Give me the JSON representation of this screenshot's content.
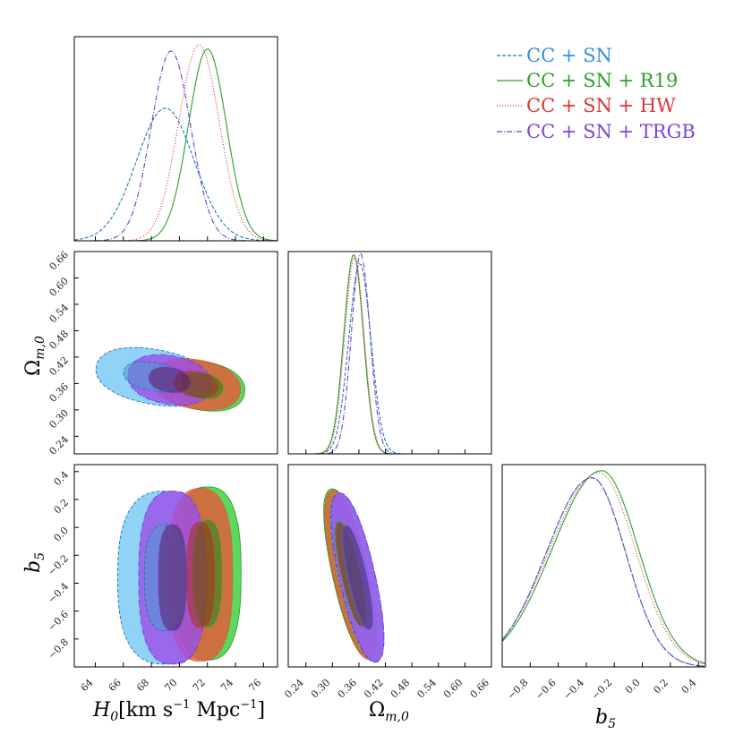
{
  "legend": [
    {
      "label": "CC + SN",
      "color": "#1f77b4",
      "text_color": "#2f8fe0",
      "style": "dashed"
    },
    {
      "label": "CC + SN + R19",
      "color": "#2ca02c",
      "text_color": "#2ca02c",
      "style": "solid"
    },
    {
      "label": "CC + SN + HW",
      "color": "#d62728",
      "text_color": "#e03030",
      "style": "dotted"
    },
    {
      "label": "CC + SN + TRGB",
      "color": "#6a3fd6",
      "text_color": "#7a44d6",
      "style": "dashdot"
    }
  ],
  "fill_colors": [
    "#79c8f5",
    "#39d039",
    "#e65a3a",
    "#9b50e8"
  ],
  "inner_fill_colors": [
    "#4a9ccd",
    "#1a8a1a",
    "#a5321e",
    "#5a1a6a"
  ],
  "chart_data": {
    "type": "corner",
    "parameters": [
      {
        "name": "H0",
        "tex_label_main": "H",
        "tex_label_sub": "0",
        "label_units": "[km s",
        "label_units_sup": "−1",
        "label_units2": " Mpc",
        "label_units_sup2": "−1",
        "label_units3": "]",
        "range": [
          62.5,
          77.0
        ],
        "ticks": [
          "64",
          "66",
          "68",
          "70",
          "72",
          "74",
          "76"
        ]
      },
      {
        "name": "Omega_m0",
        "tex_label_main": "Ω",
        "tex_label_sub": "m,0",
        "range": [
          0.2,
          0.66
        ],
        "ticks": [
          "0.24",
          "0.30",
          "0.36",
          "0.42",
          "0.48",
          "0.54",
          "0.60",
          "0.66"
        ]
      },
      {
        "name": "b5",
        "tex_label_main": "b",
        "tex_label_sub": "5",
        "range": [
          -1.0,
          0.45
        ],
        "ticks": [
          "−0.8",
          "−0.6",
          "−0.4",
          "−0.2",
          "0.0",
          "0.2",
          "0.4"
        ]
      }
    ],
    "series": [
      {
        "name": "CC + SN",
        "H0": {
          "mean": 69.0,
          "sd": 2.05
        },
        "Omega_m0": {
          "mean": 0.362,
          "sd": 0.025
        },
        "b5": {
          "mean": -0.36,
          "sd": 0.24
        },
        "peaks": {
          "H0": 0.65,
          "Omega_m0": 0.94,
          "b5": 0.935
        }
      },
      {
        "name": "CC + SN + R19",
        "H0": {
          "mean": 72.0,
          "sd": 1.35
        },
        "Omega_m0": {
          "mean": 0.348,
          "sd": 0.022
        },
        "b5": {
          "mean": -0.29,
          "sd": 0.26
        },
        "peaks": {
          "H0": 0.94,
          "Omega_m0": 0.985,
          "b5": 0.97
        }
      },
      {
        "name": "CC + SN + HW",
        "H0": {
          "mean": 71.4,
          "sd": 1.45
        },
        "Omega_m0": {
          "mean": 0.35,
          "sd": 0.022
        },
        "b5": {
          "mean": -0.31,
          "sd": 0.26
        },
        "peaks": {
          "H0": 0.96,
          "Omega_m0": 0.97,
          "b5": 0.96
        }
      },
      {
        "name": "CC + SN + TRGB",
        "H0": {
          "mean": 69.4,
          "sd": 1.4
        },
        "Omega_m0": {
          "mean": 0.364,
          "sd": 0.021
        },
        "b5": {
          "mean": -0.36,
          "sd": 0.24
        },
        "peaks": {
          "H0": 0.93,
          "Omega_m0": 0.99,
          "b5": 0.935
        }
      }
    ],
    "contours_H0_Om": [
      {
        "series": "CC + SN",
        "center": [
          68.2,
          0.375
        ],
        "outer": [
          4.2,
          0.062
        ],
        "inner": [
          2.2,
          0.032
        ],
        "tilt": -0.006
      },
      {
        "series": "CC + SN + R19",
        "center": [
          71.6,
          0.355
        ],
        "outer": [
          3.1,
          0.055
        ],
        "inner": [
          1.5,
          0.028
        ],
        "tilt": -0.006
      },
      {
        "series": "CC + SN + HW",
        "center": [
          71.2,
          0.358
        ],
        "outer": [
          3.2,
          0.056
        ],
        "inner": [
          1.6,
          0.029
        ],
        "tilt": -0.006
      },
      {
        "series": "CC + SN + TRGB",
        "center": [
          69.3,
          0.368
        ],
        "outer": [
          3.0,
          0.055
        ],
        "inner": [
          1.5,
          0.028
        ],
        "tilt": -0.006
      }
    ],
    "contours_H0_b5": [
      {
        "series": "CC + SN",
        "center": [
          69.0,
          -0.36
        ],
        "outer": [
          3.4,
          0.62
        ],
        "inner": [
          1.5,
          0.38
        ]
      },
      {
        "series": "CC + SN + R19",
        "center": [
          72.0,
          -0.33
        ],
        "outer": [
          2.4,
          0.62
        ],
        "inner": [
          1.0,
          0.38
        ]
      },
      {
        "series": "CC + SN + HW",
        "center": [
          71.5,
          -0.34
        ],
        "outer": [
          2.3,
          0.62
        ],
        "inner": [
          1.0,
          0.38
        ]
      },
      {
        "series": "CC + SN + TRGB",
        "center": [
          69.5,
          -0.36
        ],
        "outer": [
          2.4,
          0.62
        ],
        "inner": [
          1.0,
          0.38
        ]
      }
    ],
    "contours_Om_b5": [
      {
        "series": "CC + SN + R19",
        "center": [
          0.34,
          -0.33
        ],
        "outer": [
          0.04,
          0.62
        ],
        "inner": [
          0.02,
          0.38
        ],
        "slope": 0.22
      },
      {
        "series": "CC + SN + HW",
        "center": [
          0.342,
          -0.34
        ],
        "outer": [
          0.04,
          0.62
        ],
        "inner": [
          0.02,
          0.38
        ],
        "slope": 0.22
      },
      {
        "series": "CC + SN",
        "center": [
          0.356,
          -0.36
        ],
        "outer": [
          0.041,
          0.62
        ],
        "inner": [
          0.021,
          0.38
        ],
        "slope": 0.22
      },
      {
        "series": "CC + SN + TRGB",
        "center": [
          0.357,
          -0.36
        ],
        "outer": [
          0.04,
          0.62
        ],
        "inner": [
          0.02,
          0.38
        ],
        "slope": 0.22
      }
    ]
  }
}
